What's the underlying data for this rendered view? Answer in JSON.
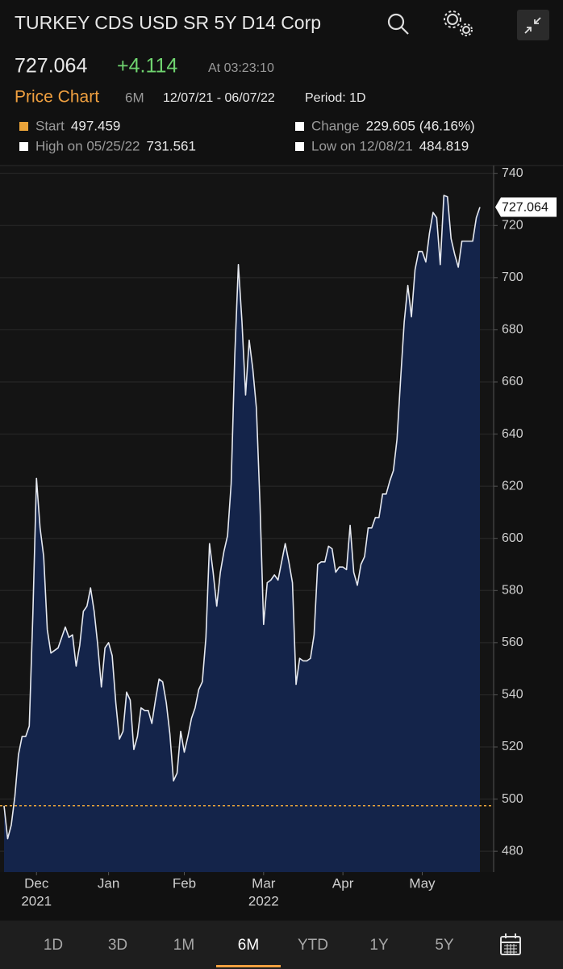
{
  "header": {
    "title": "TURKEY CDS USD SR 5Y D14 Corp",
    "price": "727.064",
    "change": "+4.114",
    "time": "At 03:23:10"
  },
  "chart_header": {
    "title": "Price Chart",
    "range": "6M",
    "dates": "12/07/21 - 06/07/22",
    "period": "Period: 1D"
  },
  "stats": [
    {
      "label": "Start",
      "value": "497.459"
    },
    {
      "label": "Change",
      "value": "229.605 (46.16%)"
    },
    {
      "label": "High on 05/25/22",
      "value": "731.561"
    },
    {
      "label": "Low on 12/08/21",
      "value": "484.819"
    }
  ],
  "chart_data": {
    "type": "area",
    "values": [
      497.459,
      484.819,
      490,
      501,
      517,
      524,
      524,
      528,
      571,
      623,
      604,
      593,
      565,
      556,
      557,
      558,
      562,
      566,
      562,
      563,
      551,
      559,
      572,
      574,
      581,
      572,
      559,
      543,
      558,
      560,
      555,
      537,
      523,
      526,
      541,
      538,
      519,
      524,
      535,
      534,
      534,
      529,
      538,
      546,
      545,
      537,
      525,
      507,
      510,
      526,
      518,
      524,
      531,
      535,
      542,
      545,
      562,
      598,
      587,
      574,
      587,
      595,
      601,
      621,
      670,
      705,
      683,
      655,
      676,
      665,
      650,
      613,
      567,
      583,
      584,
      586,
      584,
      591,
      598,
      591,
      583,
      544,
      554,
      553,
      553,
      554,
      563,
      590,
      591,
      591,
      597,
      596,
      587,
      589,
      589,
      588,
      605,
      587,
      582,
      590,
      593,
      604,
      604,
      608,
      608,
      617,
      617,
      622,
      626,
      638,
      661,
      683,
      697,
      685,
      703,
      710,
      710,
      706,
      717,
      725,
      723,
      705,
      731.561,
      731,
      715,
      709,
      704,
      714,
      714,
      714,
      714,
      723,
      727.064
    ],
    "xlim": [
      0,
      132
    ],
    "xticks": [
      {
        "value": 9,
        "label": "Dec"
      },
      {
        "value": 29,
        "label": "Jan"
      },
      {
        "value": 50,
        "label": "Feb"
      },
      {
        "value": 72,
        "label": "Mar"
      },
      {
        "value": 94,
        "label": "Apr"
      },
      {
        "value": 116,
        "label": "May"
      }
    ],
    "xticks_year": [
      {
        "value": 9,
        "label": "2021"
      },
      {
        "value": 72,
        "label": "2022"
      }
    ],
    "ylim": [
      472,
      743
    ],
    "yticks": [
      480,
      500,
      520,
      540,
      560,
      580,
      600,
      620,
      640,
      660,
      680,
      700,
      720,
      740
    ],
    "grid": true,
    "color": "#e6e9f0",
    "fill": "#14244a",
    "reference_line": 497.459,
    "reference_color": "#e8a33a"
  },
  "tabs": [
    "1D",
    "3D",
    "1M",
    "6M",
    "YTD",
    "1Y",
    "5Y"
  ],
  "selected_tab": 3
}
